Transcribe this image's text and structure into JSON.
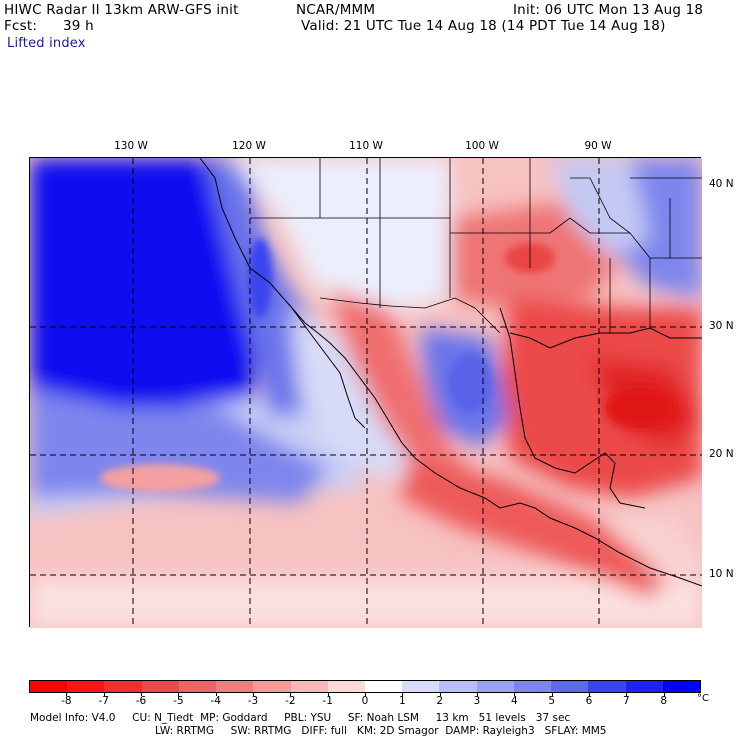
{
  "header": {
    "line1_left": "HIWC Radar II 13km ARW-GFS init",
    "line1_center": "NCAR/MMM",
    "line1_right": "Init: 06 UTC Mon 13 Aug 18",
    "fcst_label": "Fcst:",
    "fcst_value": "39 h",
    "valid": "Valid: 21 UTC Tue 14 Aug 18 (14 PDT Tue 14 Aug 18)",
    "field": "Lifted index"
  },
  "map": {
    "lon_labels": [
      "130 W",
      "120 W",
      "110 W",
      "100 W",
      "90 W"
    ],
    "lat_labels": [
      "40 N",
      "30 N",
      "20 N",
      "10 N"
    ]
  },
  "colorbar": {
    "labels": [
      "-8",
      "-7",
      "-6",
      "-5",
      "-4",
      "-3",
      "-2",
      "-1",
      "0",
      "1",
      "2",
      "3",
      "4",
      "5",
      "6",
      "7",
      "8"
    ],
    "unit": "°C",
    "colors": [
      "#ff0000",
      "#f71515",
      "#f03030",
      "#ec4a4a",
      "#ee6464",
      "#f07e7e",
      "#f59a9a",
      "#f8b8b8",
      "#fcd8d8",
      "#ffffff",
      "#d8dcfa",
      "#b8bef6",
      "#9aa1f0",
      "#7e86ee",
      "#6068ec",
      "#3a44ee",
      "#1c24f4",
      "#0000ff"
    ]
  },
  "footer": {
    "line1": "Model Info: V4.0     CU: N_Tiedt  MP: Goddard     PBL: YSU     SF: Noah LSM     13 km   51 levels   37 sec",
    "line2": "LW: RRTMG     SW: RRTMG   DIFF: full   KM: 2D Smagor  DAMP: Rayleigh3   SFLAY: MM5"
  }
}
